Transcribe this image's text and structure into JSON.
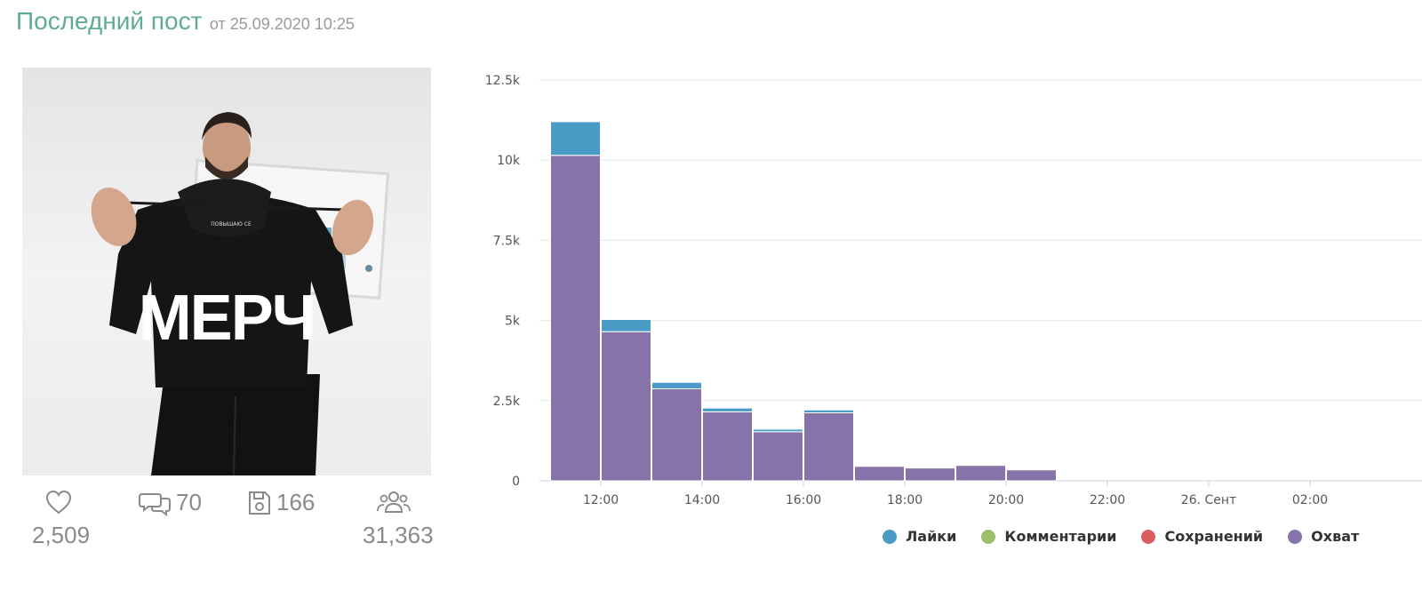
{
  "header": {
    "title": "Последний пост",
    "date": "от 25.09.2020 10:25"
  },
  "post": {
    "image_text": "МЕРЧ",
    "hoodie_text": "ПОВЫШАЮ СЕ",
    "likes": "2,509",
    "comments": "70",
    "saves": "166",
    "followers": "31,363",
    "icons": {
      "likes": "heart-icon",
      "comments": "comments-icon",
      "saves": "save-icon",
      "followers": "people-icon"
    }
  },
  "chart_data": {
    "type": "bar",
    "stacked": true,
    "categories": [
      "11:00",
      "12:00",
      "13:00",
      "14:00",
      "15:00",
      "16:00",
      "17:00",
      "18:00",
      "19:00",
      "20:00",
      "21:00",
      "22:00",
      "23:00",
      "00:00",
      "01:00",
      "02:00"
    ],
    "series": [
      {
        "name": "Охват",
        "color": "#8872aa",
        "values": [
          10150,
          4650,
          2870,
          2150,
          1530,
          2120,
          450,
          400,
          480,
          340,
          0,
          0,
          0,
          0,
          0,
          0
        ]
      },
      {
        "name": "Сохранений",
        "color": "#d95f5f",
        "values": [
          0,
          0,
          0,
          0,
          0,
          0,
          0,
          0,
          0,
          0,
          0,
          0,
          0,
          0,
          0,
          0
        ]
      },
      {
        "name": "Комментарии",
        "color": "#9bbf6a",
        "values": [
          0,
          0,
          0,
          0,
          0,
          0,
          0,
          0,
          0,
          0,
          0,
          0,
          0,
          0,
          0,
          0
        ]
      },
      {
        "name": "Лайки",
        "color": "#4a9cc6",
        "values": [
          1050,
          380,
          200,
          120,
          80,
          90,
          0,
          0,
          0,
          0,
          0,
          0,
          0,
          0,
          0,
          0
        ]
      }
    ],
    "x_tick_labels": [
      "12:00",
      "14:00",
      "16:00",
      "18:00",
      "20:00",
      "22:00",
      "26. Сент",
      "02:00"
    ],
    "y_ticks": [
      "0",
      "2.5k",
      "5k",
      "7.5k",
      "10k",
      "12.5k"
    ],
    "ylim": [
      0,
      12500
    ],
    "grid": true,
    "legend_position": "bottom-right"
  },
  "legend": [
    {
      "label": "Лайки",
      "color": "#4a9cc6"
    },
    {
      "label": "Комментарии",
      "color": "#9bbf6a"
    },
    {
      "label": "Сохранений",
      "color": "#d95f5f"
    },
    {
      "label": "Охват",
      "color": "#8872aa"
    }
  ]
}
